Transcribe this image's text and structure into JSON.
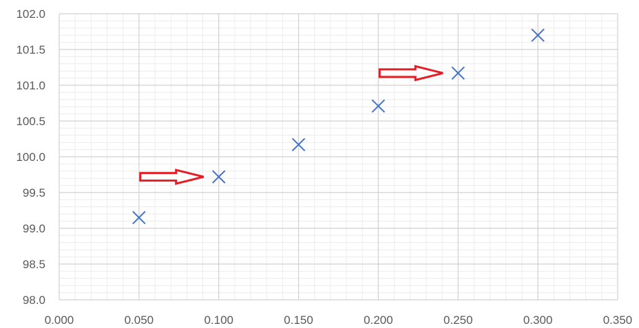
{
  "chart_data": {
    "type": "scatter",
    "title": "",
    "xlabel": "",
    "ylabel": "",
    "xlim": [
      0,
      0.35
    ],
    "ylim": [
      98,
      102
    ],
    "x_ticks": [
      "0.000",
      "0.050",
      "0.100",
      "0.150",
      "0.200",
      "0.250",
      "0.300",
      "0.350"
    ],
    "y_ticks": [
      "98.0",
      "98.5",
      "99.0",
      "99.5",
      "100.0",
      "100.5",
      "101.0",
      "101.5",
      "102.0"
    ],
    "major_grid": true,
    "minor_grid": true,
    "minor_divisions": 5,
    "marker": "x",
    "series": [
      {
        "color": "#4472C4",
        "points": [
          {
            "x": 0.05,
            "y": 99.15
          },
          {
            "x": 0.1,
            "y": 99.72
          },
          {
            "x": 0.15,
            "y": 100.17
          },
          {
            "x": 0.2,
            "y": 100.71
          },
          {
            "x": 0.25,
            "y": 101.17
          },
          {
            "x": 0.3,
            "y": 101.7
          }
        ]
      }
    ],
    "annotations": [
      {
        "type": "arrow",
        "points_to": {
          "x": 0.1,
          "y": 99.72
        },
        "color": "#E31E24"
      },
      {
        "type": "arrow",
        "points_to": {
          "x": 0.25,
          "y": 101.17
        },
        "color": "#E31E24"
      }
    ]
  }
}
